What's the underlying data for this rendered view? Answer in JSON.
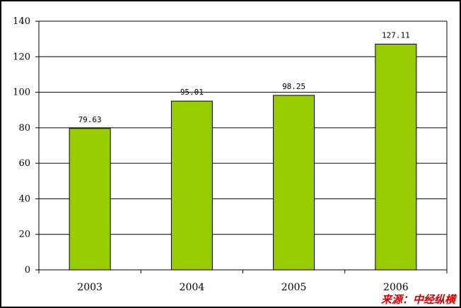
{
  "chart_data": {
    "type": "bar",
    "categories": [
      "2003",
      "2004",
      "2005",
      "2006"
    ],
    "values": [
      79.63,
      95.01,
      98.25,
      127.11
    ],
    "value_labels": [
      "79.63",
      "95.01",
      "98.25",
      "127.11"
    ],
    "ylim": [
      0,
      140
    ],
    "yticks": [
      "0",
      "20",
      "40",
      "60",
      "80",
      "100",
      "120",
      "140"
    ],
    "grid": true,
    "bar_color": "#99cc00"
  },
  "source_text": "来源：中经纵横"
}
